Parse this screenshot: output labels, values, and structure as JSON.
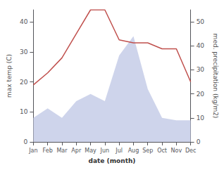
{
  "chart_data": {
    "type": "line",
    "xlabel": "date (month)",
    "ylabel": "max temp (C)",
    "y2label": "med. precipitation (kg/m2)",
    "categories": [
      "Jan",
      "Feb",
      "Mar",
      "Apr",
      "May",
      "Jun",
      "Jul",
      "Aug",
      "Sep",
      "Oct",
      "Nov",
      "Dec"
    ],
    "series": [
      {
        "type": "area",
        "axis": "y2",
        "color": "#c5cce8",
        "values": [
          10,
          14,
          10,
          17,
          20,
          17,
          36,
          44,
          22,
          10,
          9,
          9
        ]
      },
      {
        "type": "line",
        "color": "#c0504d",
        "values": [
          19,
          23,
          28,
          36,
          44,
          44,
          34,
          33,
          33,
          31,
          31,
          20
        ]
      }
    ],
    "ylim": [
      0,
      44
    ],
    "yticks": [
      0,
      10,
      20,
      30,
      40
    ],
    "y2lim": [
      0,
      55
    ],
    "y2ticks": [
      0,
      10,
      20,
      30,
      40,
      50
    ],
    "grid": false
  }
}
